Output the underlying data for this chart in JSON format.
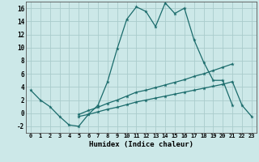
{
  "background_color": "#cce8e8",
  "grid_color": "#aacccc",
  "line_color": "#1a6b6b",
  "xlabel": "Humidex (Indice chaleur)",
  "xlim": [
    -0.5,
    23.5
  ],
  "ylim": [
    -3,
    17
  ],
  "yticks": [
    -2,
    0,
    2,
    4,
    6,
    8,
    10,
    12,
    14,
    16
  ],
  "xticks": [
    0,
    1,
    2,
    3,
    4,
    5,
    6,
    7,
    8,
    9,
    10,
    11,
    12,
    13,
    14,
    15,
    16,
    17,
    18,
    19,
    20,
    21,
    22,
    23
  ],
  "series1_y": [
    3.5,
    2.0,
    1.0,
    -0.5,
    -1.8,
    -2.0,
    -0.2,
    1.2,
    4.8,
    9.8,
    14.3,
    16.2,
    15.5,
    13.2,
    16.8,
    15.2,
    16.0,
    11.2,
    7.8,
    5.0,
    5.0,
    1.2,
    null,
    null
  ],
  "series2_y": [
    null,
    null,
    null,
    null,
    null,
    -0.2,
    0.4,
    0.9,
    1.5,
    2.0,
    2.6,
    3.2,
    3.5,
    3.9,
    4.3,
    4.7,
    5.1,
    5.6,
    6.0,
    6.5,
    7.0,
    7.5,
    null,
    null
  ],
  "series3_y": [
    null,
    null,
    null,
    null,
    null,
    -0.5,
    -0.2,
    0.2,
    0.6,
    0.9,
    1.3,
    1.7,
    2.0,
    2.3,
    2.6,
    2.9,
    3.2,
    3.5,
    3.8,
    4.1,
    4.4,
    4.8,
    1.2,
    -0.5
  ]
}
